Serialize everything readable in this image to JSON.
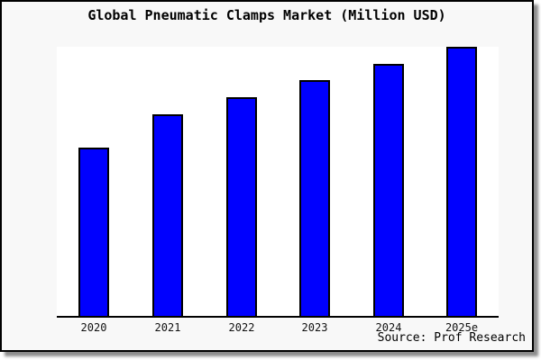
{
  "title": "Global Pneumatic Clamps Market (Million USD)",
  "source": "Source: Prof Research",
  "colors": {
    "figure_background": "#f8f8f8",
    "plot_background": "#ffffff",
    "bar_fill": "#0000fe",
    "bar_border": "#000000",
    "frame_border": "#000000",
    "axis_line": "#000000",
    "text": "#000000"
  },
  "chart_data": {
    "type": "bar",
    "title": "Global Pneumatic Clamps Market (Million USD)",
    "categories": [
      "2020",
      "2021",
      "2022",
      "2023",
      "2024",
      "2025e"
    ],
    "values": [
      188,
      225,
      244,
      263,
      281,
      300
    ],
    "values_note": "relative heights estimated from pixels; chart shows no y-axis ticks or value labels",
    "xlabel": "",
    "ylabel": "",
    "ylim": [
      0,
      300
    ],
    "grid": false,
    "legend": false,
    "annotations": [
      "Source: Prof Research"
    ]
  }
}
